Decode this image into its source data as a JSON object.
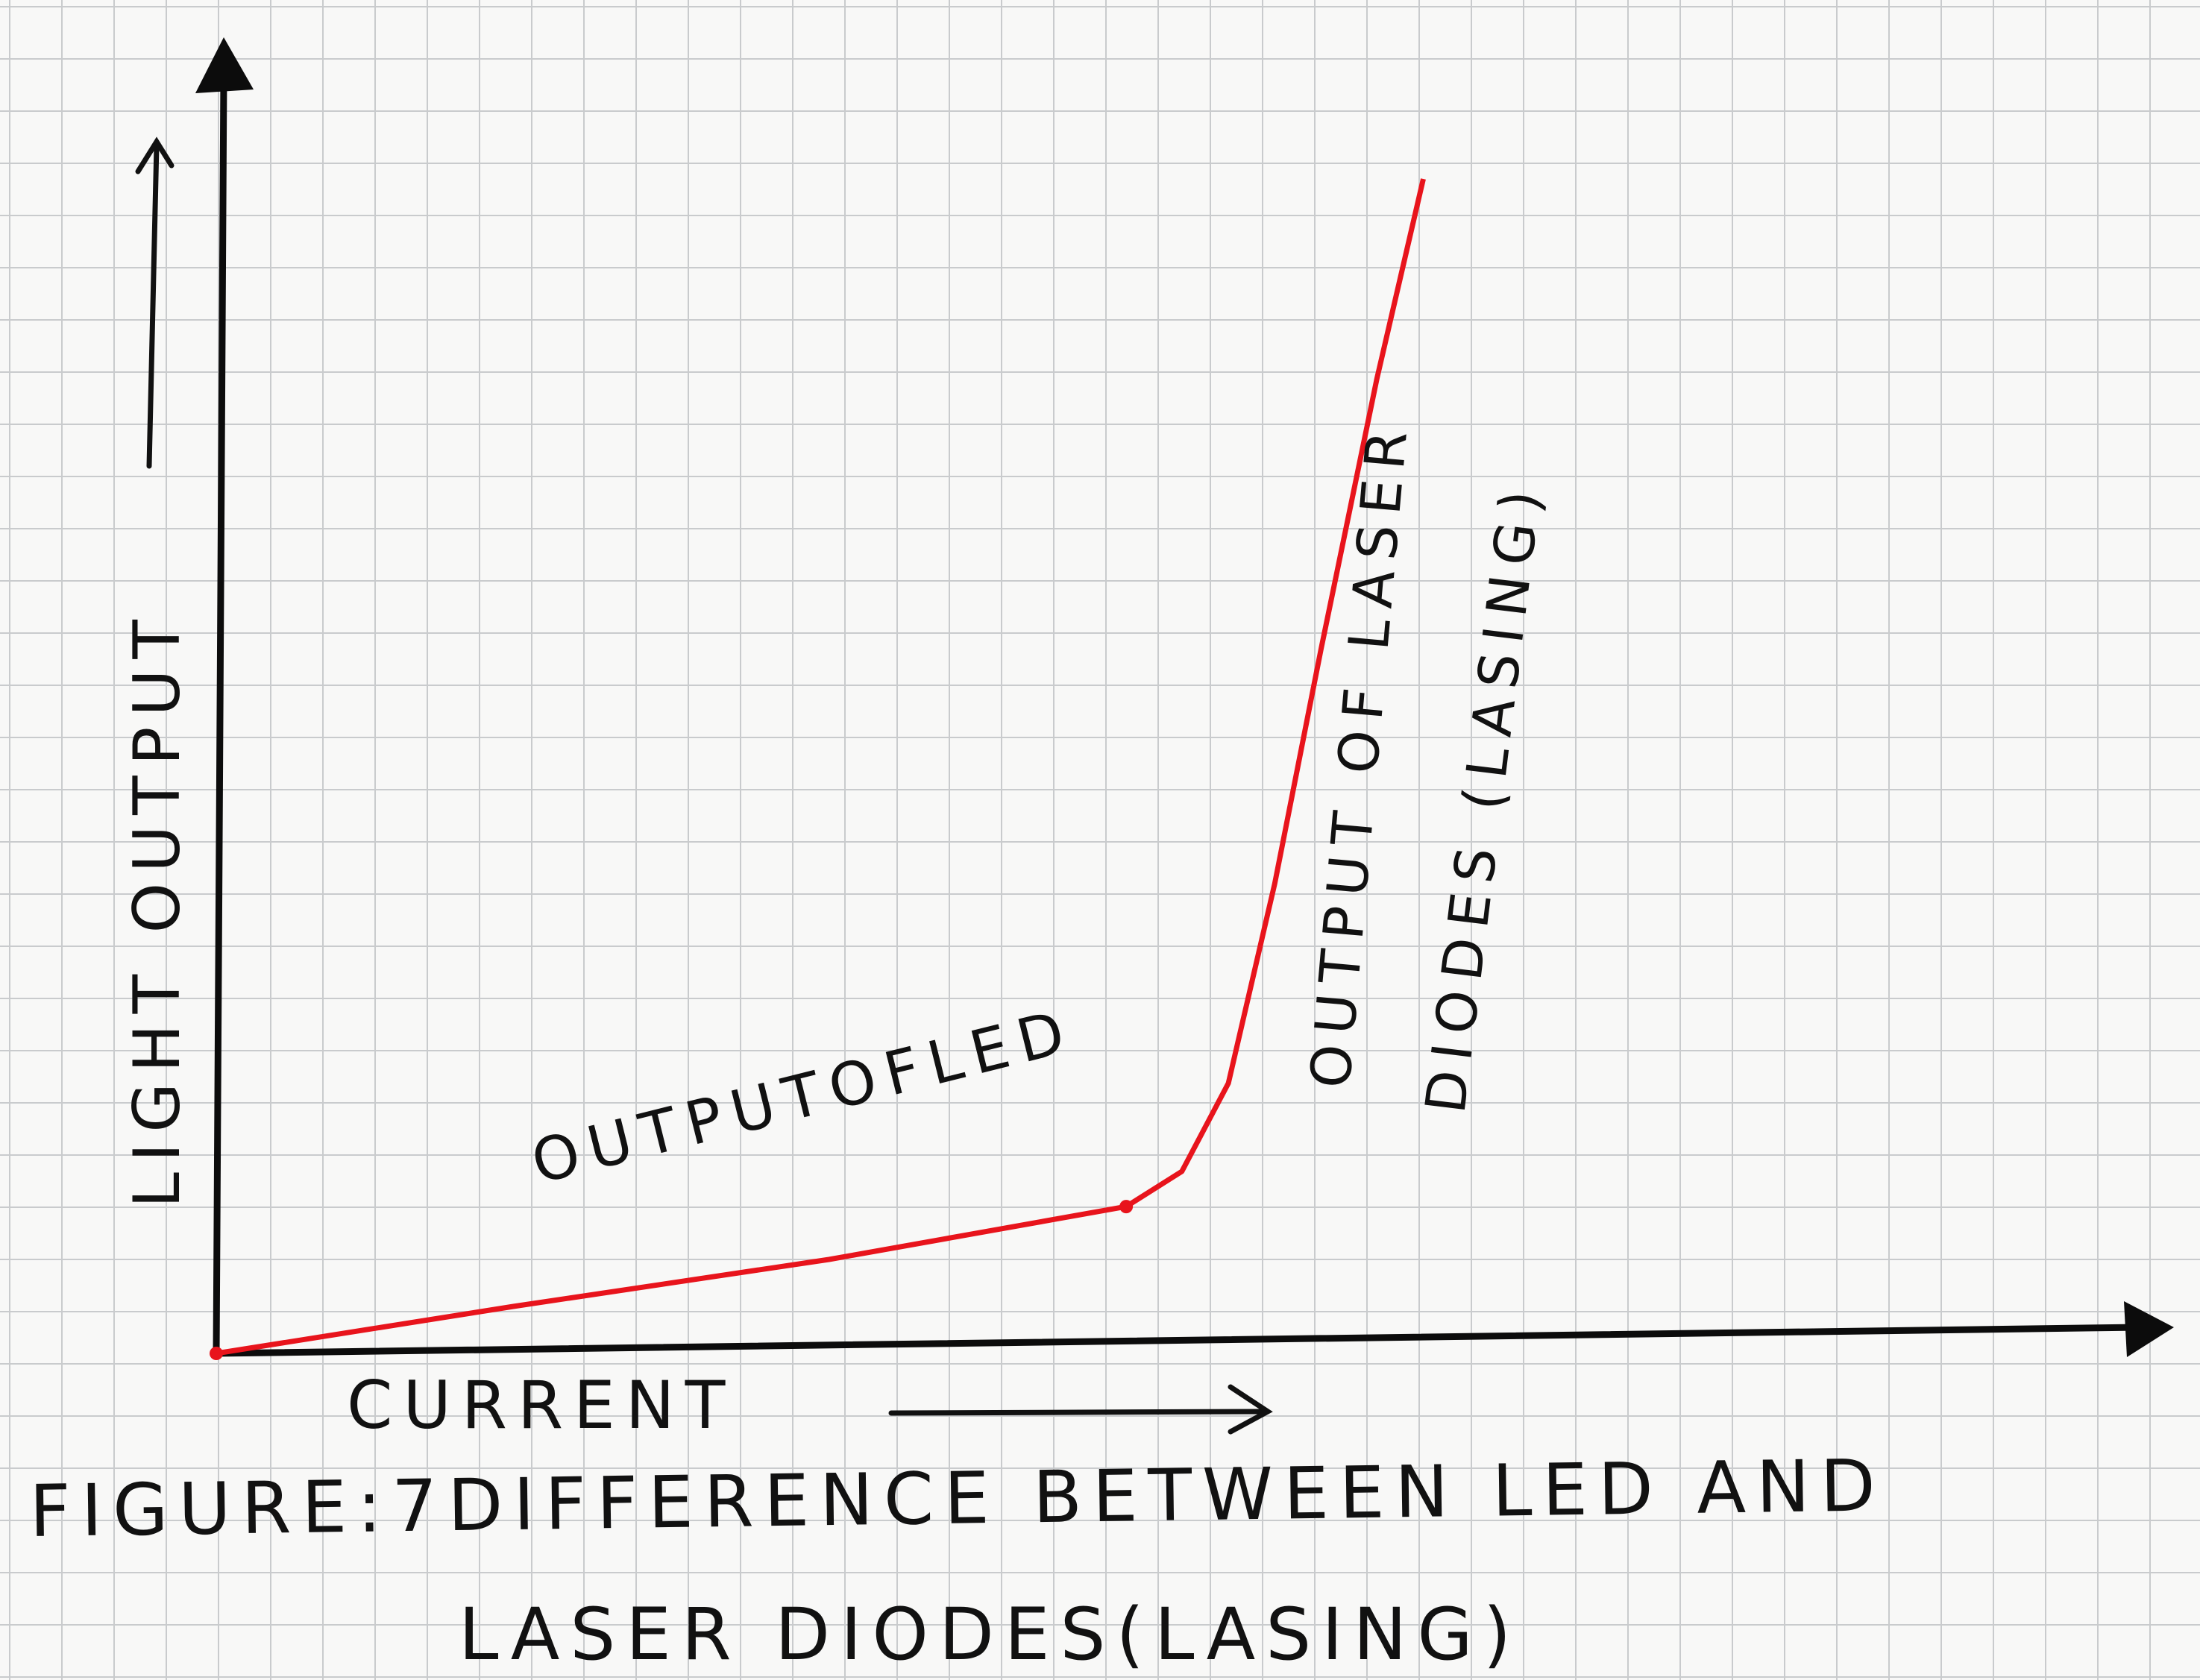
{
  "chart_data": {
    "type": "line",
    "title": "",
    "xlabel": "CURRENT",
    "ylabel": "LIGHT OUTPUT",
    "xlim": [
      0,
      100
    ],
    "ylim": [
      0,
      100
    ],
    "grid": true,
    "series": [
      {
        "name": "",
        "color": "#e8141c",
        "points": [
          {
            "x": 0,
            "y": 0
          },
          {
            "x": 16,
            "y": 4
          },
          {
            "x": 33,
            "y": 8
          },
          {
            "x": 49,
            "y": 12.5
          },
          {
            "x": 52,
            "y": 15.5
          },
          {
            "x": 54.5,
            "y": 23
          },
          {
            "x": 57,
            "y": 40
          },
          {
            "x": 59.5,
            "y": 60
          },
          {
            "x": 62.5,
            "y": 83
          },
          {
            "x": 65,
            "y": 100
          }
        ]
      }
    ],
    "annotations": [
      {
        "text": "OUTPUTOFLED",
        "x": 33,
        "y": 17
      },
      {
        "text": "OUTPUT OF LASER",
        "x": 61,
        "y": 72
      },
      {
        "text": "DIODES (LASING)",
        "x": 70,
        "y": 73
      }
    ]
  },
  "caption": {
    "line1": "FIGURE:7DIFFERENCE BETWEEN LED AND",
    "line2": "LASER DIODES(LASING)"
  }
}
